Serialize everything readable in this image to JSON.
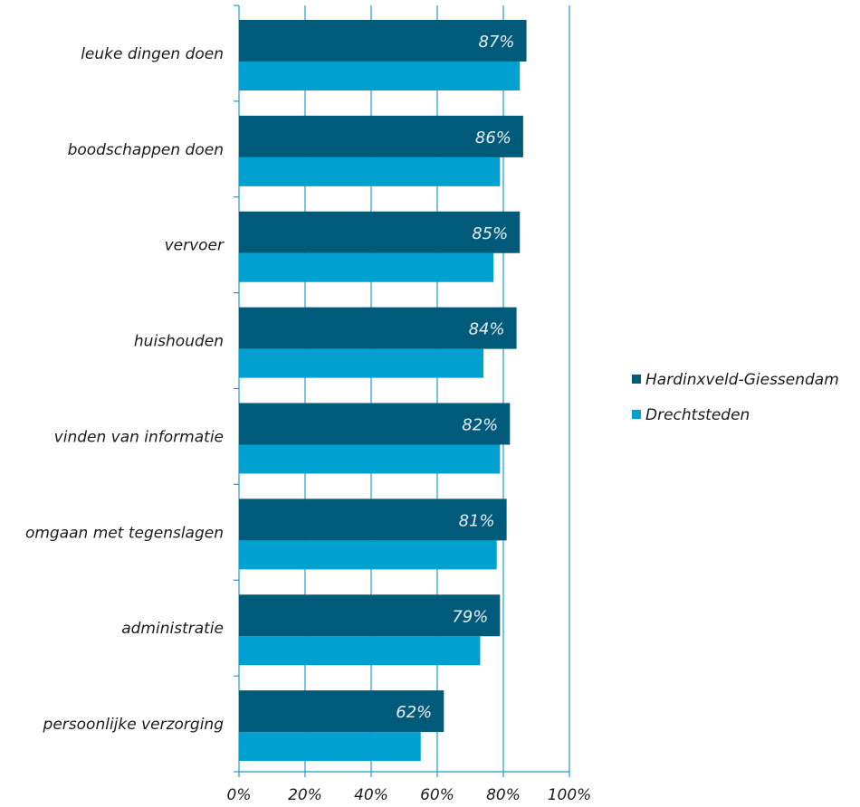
{
  "chart_data": {
    "type": "bar",
    "orientation": "horizontal",
    "categories": [
      "leuke dingen doen",
      "boodschappen doen",
      "vervoer",
      "huishouden",
      "vinden van informatie",
      "omgaan met tegenslagen",
      "administratie",
      "persoonlijke verzorging"
    ],
    "series": [
      {
        "name": "Hardinxveld-Giessendam",
        "color": "#005a7a",
        "values": [
          87,
          86,
          85,
          84,
          82,
          81,
          79,
          62
        ],
        "labels": [
          "87%",
          "86%",
          "85%",
          "84%",
          "82%",
          "81%",
          "79%",
          "62%"
        ]
      },
      {
        "name": "Drechtsteden",
        "color": "#00a0d0",
        "values": [
          85,
          79,
          77,
          74,
          79,
          78,
          73,
          55
        ]
      }
    ],
    "x_ticks": [
      "0%",
      "20%",
      "40%",
      "60%",
      "80%",
      "100%"
    ],
    "xlim": [
      0,
      100
    ],
    "grid": "vertical",
    "grid_color": "#1e9ccf",
    "legend_position": "right"
  }
}
